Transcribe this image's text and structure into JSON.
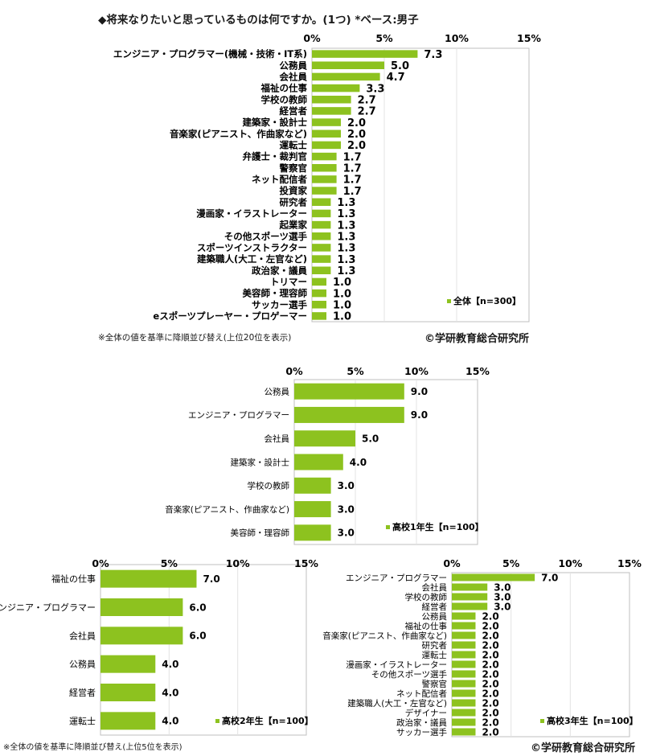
{
  "title": "◆将来なりたいと思っているものは何ですか。(1つ) *ベース:男子",
  "note_top": "※全体の値を基準に降順並び替え(上位20位を表示)",
  "note_bottom": "※全体の値を基準に降順並び替え(上位5位を表示)",
  "copyright": "©学研教育総合研究所",
  "colors": {
    "bar": "#8dc21f",
    "frame": "#bfbfbf",
    "grid": "#e3e3e3"
  },
  "chart_data": [
    {
      "type": "bar",
      "orientation": "horizontal",
      "xlim": [
        0,
        15
      ],
      "ticks": [
        "0%",
        "5%",
        "10%",
        "15%"
      ],
      "legend": "全体【n=300】",
      "legend_position": "bottom-right",
      "categories": [
        "エンジニア・プログラマー(機械・技術・IT系)",
        "公務員",
        "会社員",
        "福祉の仕事",
        "学校の教師",
        "経営者",
        "建築家・設計士",
        "音楽家(ピアニスト、作曲家など)",
        "運転士",
        "弁護士・裁判官",
        "警察官",
        "ネット配信者",
        "投資家",
        "研究者",
        "漫画家・イラストレーター",
        "起業家",
        "その他スポーツ選手",
        "スポーツインストラクター",
        "建築職人(大工・左官など)",
        "政治家・議員",
        "トリマー",
        "美容師・理容師",
        "サッカー選手",
        "eスポーツプレーヤー・プロゲーマー"
      ],
      "values": [
        7.3,
        5.0,
        4.7,
        3.3,
        2.7,
        2.7,
        2.0,
        2.0,
        2.0,
        1.7,
        1.7,
        1.7,
        1.7,
        1.3,
        1.3,
        1.3,
        1.3,
        1.3,
        1.3,
        1.3,
        1.0,
        1.0,
        1.0,
        1.0
      ]
    },
    {
      "type": "bar",
      "orientation": "horizontal",
      "xlim": [
        0,
        15
      ],
      "ticks": [
        "0%",
        "5%",
        "10%",
        "15%"
      ],
      "legend": "高校1年生【n=100】",
      "legend_position": "bottom-right",
      "categories": [
        "公務員",
        "エンジニア・プログラマー",
        "会社員",
        "建築家・設計士",
        "学校の教師",
        "音楽家(ピアニスト、作曲家など)",
        "美容師・理容師"
      ],
      "values": [
        9.0,
        9.0,
        5.0,
        4.0,
        3.0,
        3.0,
        3.0
      ]
    },
    {
      "type": "bar",
      "orientation": "horizontal",
      "xlim": [
        0,
        15
      ],
      "ticks": [
        "0%",
        "5%",
        "10%",
        "15%"
      ],
      "legend": "高校2年生【n=100】",
      "legend_position": "bottom-right",
      "categories": [
        "福祉の仕事",
        "エンジニア・プログラマー",
        "会社員",
        "公務員",
        "経営者",
        "運転士"
      ],
      "values": [
        7.0,
        6.0,
        6.0,
        4.0,
        4.0,
        4.0
      ]
    },
    {
      "type": "bar",
      "orientation": "horizontal",
      "xlim": [
        0,
        15
      ],
      "ticks": [
        "0%",
        "5%",
        "10%",
        "15%"
      ],
      "legend": "高校3年生【n=100】",
      "legend_position": "bottom-right",
      "categories": [
        "エンジニア・プログラマー",
        "会社員",
        "学校の教師",
        "経営者",
        "公務員",
        "福祉の仕事",
        "音楽家(ピアニスト、作曲家など)",
        "研究者",
        "運転士",
        "漫画家・イラストレーター",
        "その他スポーツ選手",
        "警察官",
        "ネット配信者",
        "建築職人(大工・左官など)",
        "デザイナー",
        "政治家・議員",
        "サッカー選手"
      ],
      "values": [
        7.0,
        3.0,
        3.0,
        3.0,
        2.0,
        2.0,
        2.0,
        2.0,
        2.0,
        2.0,
        2.0,
        2.0,
        2.0,
        2.0,
        2.0,
        2.0,
        2.0
      ]
    }
  ]
}
